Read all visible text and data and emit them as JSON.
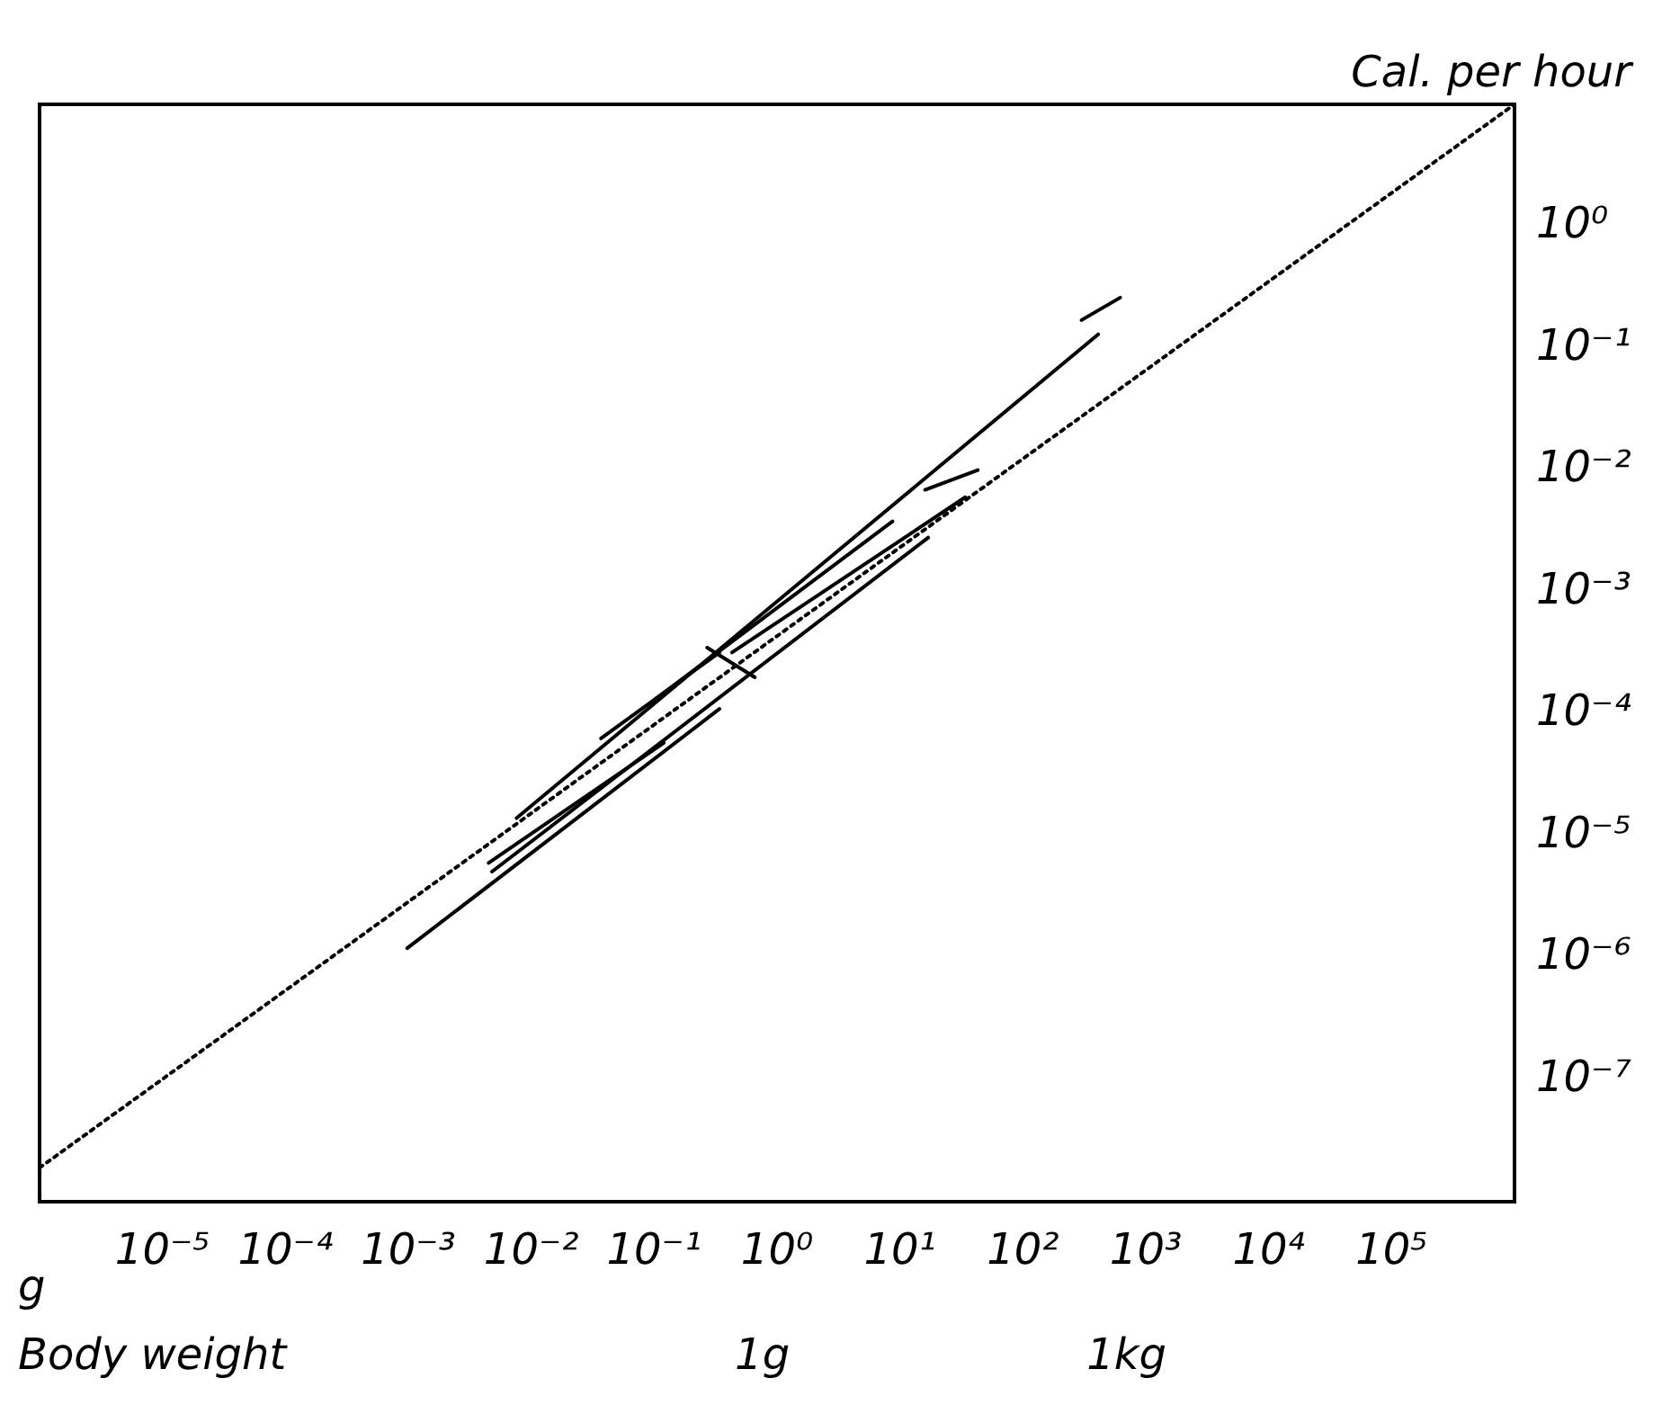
{
  "chart_data": {
    "type": "line",
    "xlabel": "Body weight",
    "ylabel": "Cal. per hour",
    "log": "xy",
    "grid": false,
    "legend": false,
    "marker": "none",
    "xlim": [
      1e-06,
      1000000.0
    ],
    "ylim": [
      1e-08,
      10
    ],
    "xticks": [
      {
        "value": 1e-05,
        "label": "10⁻⁵"
      },
      {
        "value": 0.0001,
        "label": "10⁻⁴"
      },
      {
        "value": 0.001,
        "label": "10⁻³"
      },
      {
        "value": 0.01,
        "label": "10⁻²"
      },
      {
        "value": 0.1,
        "label": "10⁻¹"
      },
      {
        "value": 1,
        "label": "10⁰"
      },
      {
        "value": 10,
        "label": "10¹"
      },
      {
        "value": 100,
        "label": "10²"
      },
      {
        "value": 1000,
        "label": "10³"
      },
      {
        "value": 10000,
        "label": "10⁴"
      },
      {
        "value": 100000,
        "label": "10⁵"
      }
    ],
    "yticks": [
      {
        "value": 1e-07,
        "label": "10⁻⁷"
      },
      {
        "value": 1e-06,
        "label": "10⁻⁶"
      },
      {
        "value": 1e-05,
        "label": "10⁻⁵"
      },
      {
        "value": 0.0001,
        "label": "10⁻⁴"
      },
      {
        "value": 0.001,
        "label": "10⁻³"
      },
      {
        "value": 0.01,
        "label": "10⁻²"
      },
      {
        "value": 0.1,
        "label": "10⁻¹"
      },
      {
        "value": 1,
        "label": "10⁰"
      }
    ],
    "annotations": [
      "g",
      "1g",
      "1kg"
    ],
    "series": [
      {
        "color": "#000000",
        "line_style": "dotted",
        "x": [
          1e-06,
          1000000.0
        ],
        "values": [
          1.9e-08,
          10
        ]
      },
      {
        "color": "#000000",
        "x": [
          300,
          620
        ],
        "values": [
          0.17,
          0.26
        ]
      },
      {
        "color": "#000000",
        "x": [
          0.0076,
          410
        ],
        "values": [
          1.4e-05,
          0.13
        ]
      },
      {
        "color": "#000000",
        "x": [
          16,
          43
        ],
        "values": [
          0.0069,
          0.01
        ]
      },
      {
        "color": "#000000",
        "x": [
          0.43,
          34
        ],
        "values": [
          0.00032,
          0.006
        ]
      },
      {
        "color": "#000000",
        "x": [
          0.1,
          8.7
        ],
        "values": [
          0.00013,
          0.0038
        ]
      },
      {
        "color": "#000000",
        "x": [
          0.0048,
          17
        ],
        "values": [
          5.1e-06,
          0.0028
        ]
      },
      {
        "color": "#000000",
        "x": [
          0.037,
          0.34
        ],
        "values": [
          6.3e-05,
          0.00032
        ]
      },
      {
        "color": "#000000",
        "x": [
          0.00098,
          0.34
        ],
        "values": [
          1.2e-06,
          0.00011
        ]
      },
      {
        "color": "#000000",
        "x": [
          0.0045,
          0.12
        ],
        "values": [
          6e-06,
          5.8e-05
        ]
      },
      {
        "color": "#000000",
        "x": [
          0.27,
          0.66
        ],
        "values": [
          0.00035,
          0.0002
        ]
      }
    ]
  }
}
